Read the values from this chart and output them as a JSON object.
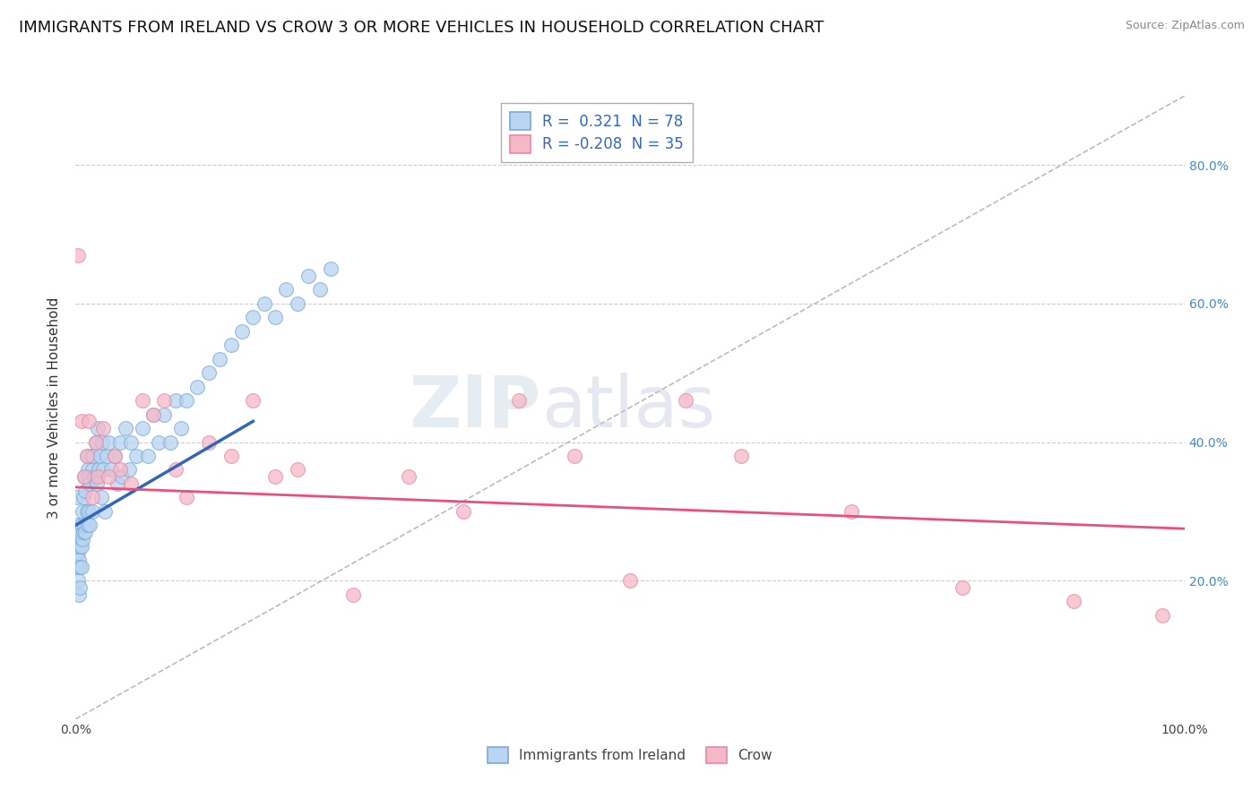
{
  "title": "IMMIGRANTS FROM IRELAND VS CROW 3 OR MORE VEHICLES IN HOUSEHOLD CORRELATION CHART",
  "source": "Source: ZipAtlas.com",
  "ylabel": "3 or more Vehicles in Household",
  "watermark_zip": "ZIP",
  "watermark_atlas": "atlas",
  "xlim": [
    0.0,
    1.0
  ],
  "ylim": [
    0.0,
    0.9
  ],
  "legend_entries": [
    {
      "label": "Immigrants from Ireland",
      "R": "0.321",
      "N": 78,
      "color": "#b8d4f0",
      "edge_color": "#7aaad8",
      "line_color": "#3366bb"
    },
    {
      "label": "Crow",
      "R": "-0.208",
      "N": 35,
      "color": "#f5b8c8",
      "edge_color": "#e888a0",
      "line_color": "#e8507a"
    }
  ],
  "blue_x": [
    0.001,
    0.001,
    0.001,
    0.002,
    0.002,
    0.002,
    0.003,
    0.003,
    0.003,
    0.004,
    0.004,
    0.004,
    0.005,
    0.005,
    0.005,
    0.006,
    0.006,
    0.007,
    0.007,
    0.008,
    0.008,
    0.009,
    0.009,
    0.01,
    0.01,
    0.011,
    0.011,
    0.012,
    0.012,
    0.013,
    0.013,
    0.014,
    0.015,
    0.015,
    0.016,
    0.017,
    0.018,
    0.019,
    0.02,
    0.021,
    0.022,
    0.023,
    0.024,
    0.025,
    0.026,
    0.028,
    0.03,
    0.032,
    0.035,
    0.038,
    0.04,
    0.042,
    0.045,
    0.048,
    0.05,
    0.055,
    0.06,
    0.065,
    0.07,
    0.075,
    0.08,
    0.085,
    0.09,
    0.095,
    0.1,
    0.11,
    0.12,
    0.13,
    0.14,
    0.15,
    0.16,
    0.17,
    0.18,
    0.19,
    0.2,
    0.21,
    0.22,
    0.23
  ],
  "blue_y": [
    0.28,
    0.32,
    0.22,
    0.26,
    0.24,
    0.2,
    0.27,
    0.23,
    0.18,
    0.25,
    0.22,
    0.19,
    0.28,
    0.25,
    0.22,
    0.3,
    0.26,
    0.32,
    0.27,
    0.35,
    0.28,
    0.33,
    0.27,
    0.38,
    0.3,
    0.36,
    0.28,
    0.35,
    0.3,
    0.34,
    0.28,
    0.38,
    0.36,
    0.3,
    0.38,
    0.35,
    0.4,
    0.34,
    0.42,
    0.36,
    0.38,
    0.32,
    0.4,
    0.36,
    0.3,
    0.38,
    0.4,
    0.36,
    0.38,
    0.34,
    0.4,
    0.35,
    0.42,
    0.36,
    0.4,
    0.38,
    0.42,
    0.38,
    0.44,
    0.4,
    0.44,
    0.4,
    0.46,
    0.42,
    0.46,
    0.48,
    0.5,
    0.52,
    0.54,
    0.56,
    0.58,
    0.6,
    0.58,
    0.62,
    0.6,
    0.64,
    0.62,
    0.65
  ],
  "pink_x": [
    0.002,
    0.005,
    0.008,
    0.01,
    0.012,
    0.015,
    0.018,
    0.02,
    0.025,
    0.03,
    0.035,
    0.04,
    0.05,
    0.06,
    0.07,
    0.08,
    0.09,
    0.1,
    0.12,
    0.14,
    0.16,
    0.18,
    0.2,
    0.25,
    0.3,
    0.35,
    0.4,
    0.45,
    0.5,
    0.55,
    0.6,
    0.7,
    0.8,
    0.9,
    0.98
  ],
  "pink_y": [
    0.67,
    0.43,
    0.35,
    0.38,
    0.43,
    0.32,
    0.4,
    0.35,
    0.42,
    0.35,
    0.38,
    0.36,
    0.34,
    0.46,
    0.44,
    0.46,
    0.36,
    0.32,
    0.4,
    0.38,
    0.46,
    0.35,
    0.36,
    0.18,
    0.35,
    0.3,
    0.46,
    0.38,
    0.2,
    0.46,
    0.38,
    0.3,
    0.19,
    0.17,
    0.15
  ],
  "blue_trend_x": [
    0.0,
    0.16
  ],
  "blue_trend_y": [
    0.28,
    0.43
  ],
  "pink_trend_x": [
    0.0,
    1.0
  ],
  "pink_trend_y": [
    0.335,
    0.275
  ],
  "bg_color": "#ffffff",
  "grid_color": "#cccccc",
  "title_fontsize": 13,
  "ylabel_fontsize": 11,
  "tick_fontsize": 10,
  "legend_fontsize": 12
}
